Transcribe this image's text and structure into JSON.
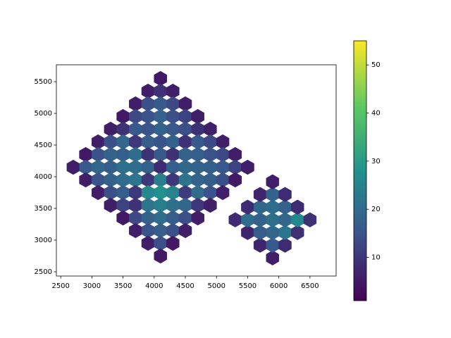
{
  "chart_data": {
    "type": "hexbin",
    "colormap": "viridis",
    "x": [
      4100,
      3900,
      4100,
      4300,
      3700,
      3900,
      4100,
      4300,
      4500,
      3500,
      3700,
      3900,
      4100,
      4300,
      4500,
      4700,
      3300,
      3500,
      3700,
      3900,
      4100,
      4300,
      4500,
      4700,
      4900,
      3100,
      3300,
      3500,
      3700,
      3900,
      4100,
      4300,
      4500,
      4700,
      4900,
      5100,
      2900,
      3100,
      3300,
      3500,
      3700,
      3900,
      4100,
      4300,
      4500,
      4700,
      4900,
      5100,
      5300,
      2700,
      2900,
      3100,
      3300,
      3500,
      3700,
      3900,
      4100,
      4300,
      4500,
      4700,
      4900,
      5100,
      5300,
      5500,
      2900,
      3100,
      3300,
      3500,
      3700,
      3900,
      4100,
      4300,
      4500,
      4700,
      4900,
      5100,
      5300,
      3100,
      3300,
      3500,
      3700,
      3900,
      4100,
      4300,
      4500,
      4700,
      4900,
      5100,
      3300,
      3500,
      3700,
      3900,
      4100,
      4300,
      4500,
      4700,
      4900,
      3500,
      3700,
      3900,
      4100,
      4300,
      4500,
      4700,
      3700,
      3900,
      4100,
      4300,
      4500,
      3900,
      4100,
      4300,
      4100,
      5900,
      5700,
      5900,
      6100,
      5500,
      5700,
      5900,
      6100,
      6300,
      5300,
      5500,
      5700,
      5900,
      6100,
      6300,
      6500,
      5500,
      5700,
      5900,
      6100,
      6300,
      5700,
      5900,
      6100,
      5900
    ],
    "y": [
      5550,
      5350,
      5350,
      5350,
      5150,
      5150,
      5150,
      5150,
      5150,
      4950,
      4950,
      4950,
      4950,
      4950,
      4950,
      4950,
      4750,
      4750,
      4750,
      4750,
      4750,
      4750,
      4750,
      4750,
      4750,
      4550,
      4550,
      4550,
      4550,
      4550,
      4550,
      4550,
      4550,
      4550,
      4550,
      4550,
      4350,
      4350,
      4350,
      4350,
      4350,
      4350,
      4350,
      4350,
      4350,
      4350,
      4350,
      4350,
      4350,
      4150,
      4150,
      4150,
      4150,
      4150,
      4150,
      4150,
      4150,
      4150,
      4150,
      4150,
      4150,
      4150,
      4150,
      4150,
      3950,
      3950,
      3950,
      3950,
      3950,
      3950,
      3950,
      3950,
      3950,
      3950,
      3950,
      3950,
      3950,
      3750,
      3750,
      3750,
      3750,
      3750,
      3750,
      3750,
      3750,
      3750,
      3750,
      3750,
      3550,
      3550,
      3550,
      3550,
      3550,
      3550,
      3550,
      3550,
      3550,
      3350,
      3350,
      3350,
      3350,
      3350,
      3350,
      3350,
      3150,
      3150,
      3150,
      3150,
      3150,
      2950,
      2950,
      2950,
      2750,
      2720,
      2920,
      2920,
      2920,
      3120,
      3120,
      3120,
      3120,
      3120,
      3320,
      3320,
      3320,
      3320,
      3320,
      3320,
      3320,
      3520,
      3520,
      3520,
      3520,
      3520,
      3720,
      3720,
      3720,
      3920
    ],
    "values": [
      5,
      6,
      9,
      6,
      6,
      14,
      16,
      13,
      6,
      5,
      13,
      15,
      18,
      14,
      12,
      6,
      6,
      9,
      16,
      15,
      18,
      16,
      14,
      9,
      6,
      6,
      14,
      19,
      10,
      17,
      15,
      18,
      9,
      16,
      13,
      6,
      5,
      15,
      18,
      17,
      20,
      9,
      16,
      9,
      18,
      17,
      15,
      13,
      6,
      6,
      16,
      19,
      17,
      21,
      20,
      18,
      8,
      17,
      19,
      18,
      17,
      16,
      12,
      6,
      6,
      15,
      18,
      20,
      22,
      10,
      24,
      10,
      22,
      18,
      17,
      14,
      5,
      6,
      14,
      17,
      10,
      26,
      28,
      25,
      11,
      20,
      15,
      6,
      6,
      12,
      9,
      22,
      24,
      21,
      19,
      10,
      6,
      5,
      13,
      18,
      20,
      17,
      14,
      6,
      6,
      15,
      17,
      14,
      6,
      6,
      14,
      5,
      5,
      6,
      7,
      16,
      8,
      7,
      17,
      19,
      22,
      9,
      8,
      20,
      18,
      21,
      19,
      26,
      9,
      8,
      19,
      20,
      18,
      8,
      7,
      18,
      8,
      6
    ],
    "xlim": [
      2430,
      6920
    ],
    "xticks": [
      2500,
      3000,
      3500,
      4000,
      4500,
      5000,
      5500,
      6000,
      6500
    ],
    "ylim": [
      2433,
      5767
    ],
    "yticks": [
      2500,
      3000,
      3500,
      4000,
      4500,
      5000,
      5500
    ],
    "clim": [
      1,
      55
    ],
    "cticks": [
      10,
      20,
      30,
      40,
      50
    ]
  }
}
